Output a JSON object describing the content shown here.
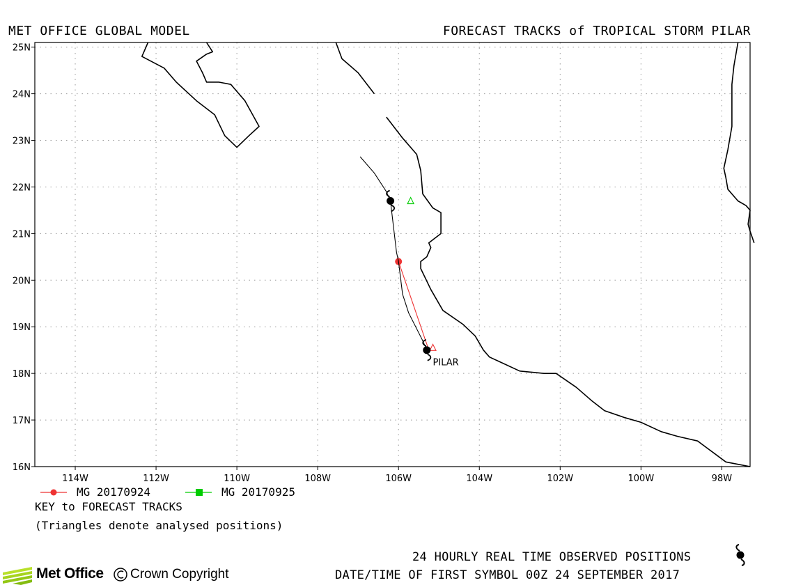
{
  "header": {
    "left_title": "MET OFFICE GLOBAL MODEL",
    "right_title": "FORECAST TRACKS of TROPICAL STORM PILAR"
  },
  "map": {
    "lon_range": [
      -115.0,
      -97.3
    ],
    "lat_range": [
      16.0,
      25.1
    ],
    "lat_ticks": [
      {
        "value": 25,
        "label": "25N"
      },
      {
        "value": 24,
        "label": "24N"
      },
      {
        "value": 23,
        "label": "23N"
      },
      {
        "value": 22,
        "label": "22N"
      },
      {
        "value": 21,
        "label": "21N"
      },
      {
        "value": 20,
        "label": "20N"
      },
      {
        "value": 19,
        "label": "19N"
      },
      {
        "value": 18,
        "label": "18N"
      },
      {
        "value": 17,
        "label": "17N"
      },
      {
        "value": 16,
        "label": "16N"
      }
    ],
    "lon_ticks": [
      {
        "value": -114,
        "label": "114W"
      },
      {
        "value": -112,
        "label": "112W"
      },
      {
        "value": -110,
        "label": "110W"
      },
      {
        "value": -108,
        "label": "108W"
      },
      {
        "value": -106,
        "label": "106W"
      },
      {
        "value": -104,
        "label": "104W"
      },
      {
        "value": -102,
        "label": "102W"
      },
      {
        "value": -100,
        "label": "100W"
      },
      {
        "value": -98,
        "label": "98W"
      }
    ],
    "grid": true,
    "storm_label": "PILAR",
    "storm_label_position": {
      "lon": -105.15,
      "lat": 18.25
    },
    "colors": {
      "coast": "#000000",
      "grid": "#999999",
      "track_red": "#ee3333",
      "track_green": "#00cc00",
      "observed": "#000000"
    },
    "coastlines": [
      [
        [
          -112.2,
          25.1
        ],
        [
          -112.35,
          24.8
        ],
        [
          -111.8,
          24.55
        ],
        [
          -111.5,
          24.25
        ],
        [
          -111.0,
          23.85
        ],
        [
          -110.55,
          23.55
        ],
        [
          -110.3,
          23.1
        ],
        [
          -110.0,
          22.85
        ],
        [
          -109.7,
          23.1
        ],
        [
          -109.45,
          23.3
        ],
        [
          -109.8,
          23.85
        ],
        [
          -110.15,
          24.2
        ],
        [
          -110.45,
          24.25
        ],
        [
          -110.75,
          24.25
        ],
        [
          -110.85,
          24.45
        ],
        [
          -111.0,
          24.7
        ],
        [
          -110.75,
          24.85
        ],
        [
          -110.6,
          24.9
        ],
        [
          -110.75,
          25.1
        ]
      ],
      [
        [
          -107.55,
          25.1
        ],
        [
          -107.4,
          24.75
        ],
        [
          -107.0,
          24.45
        ],
        [
          -106.6,
          24.0
        ]
      ],
      [
        [
          -106.3,
          23.5
        ],
        [
          -105.9,
          23.05
        ],
        [
          -105.55,
          22.7
        ],
        [
          -105.45,
          22.35
        ],
        [
          -105.4,
          21.85
        ],
        [
          -105.15,
          21.55
        ],
        [
          -104.95,
          21.45
        ],
        [
          -104.95,
          21.1
        ],
        [
          -104.95,
          21.0
        ],
        [
          -105.25,
          20.8
        ],
        [
          -105.2,
          20.7
        ],
        [
          -105.3,
          20.5
        ],
        [
          -105.45,
          20.4
        ],
        [
          -105.45,
          20.25
        ],
        [
          -105.2,
          19.8
        ],
        [
          -104.9,
          19.35
        ],
        [
          -104.4,
          19.05
        ],
        [
          -104.1,
          18.8
        ],
        [
          -103.9,
          18.5
        ],
        [
          -103.75,
          18.35
        ],
        [
          -103.5,
          18.25
        ],
        [
          -103.0,
          18.05
        ],
        [
          -102.4,
          18.0
        ],
        [
          -102.1,
          18.0
        ],
        [
          -101.6,
          17.7
        ],
        [
          -101.2,
          17.4
        ],
        [
          -100.9,
          17.2
        ],
        [
          -100.4,
          17.05
        ],
        [
          -100.0,
          16.95
        ],
        [
          -99.5,
          16.75
        ],
        [
          -99.1,
          16.65
        ],
        [
          -98.6,
          16.55
        ],
        [
          -97.9,
          16.1
        ],
        [
          -97.6,
          16.05
        ],
        [
          -97.3,
          16.0
        ]
      ],
      [
        [
          -97.6,
          25.1
        ],
        [
          -97.7,
          24.6
        ],
        [
          -97.75,
          24.2
        ],
        [
          -97.75,
          23.9
        ],
        [
          -97.75,
          23.45
        ],
        [
          -97.75,
          23.3
        ],
        [
          -97.85,
          22.8
        ],
        [
          -97.95,
          22.4
        ],
        [
          -97.9,
          22.2
        ],
        [
          -97.85,
          21.95
        ],
        [
          -97.6,
          21.7
        ],
        [
          -97.4,
          21.6
        ],
        [
          -97.3,
          21.5
        ],
        [
          -97.35,
          21.2
        ],
        [
          -97.3,
          21.05
        ],
        [
          -97.2,
          20.8
        ]
      ]
    ]
  },
  "tracks": [
    {
      "legend_label": "MG 20170924",
      "color": "#ee3333",
      "marker": "circle",
      "points": [
        {
          "lon": -105.25,
          "lat": 18.5
        },
        {
          "lon": -106.0,
          "lat": 20.4
        }
      ]
    },
    {
      "legend_label": "MG 20170925",
      "color": "#00cc00",
      "marker": "square",
      "points": []
    }
  ],
  "observed_track": [
    {
      "lon": -105.3,
      "lat": 18.5
    },
    {
      "lon": -105.4,
      "lat": 18.7
    },
    {
      "lon": -105.75,
      "lat": 19.3
    },
    {
      "lon": -105.9,
      "lat": 19.7
    },
    {
      "lon": -106.0,
      "lat": 20.4
    },
    {
      "lon": -106.05,
      "lat": 20.6
    },
    {
      "lon": -106.2,
      "lat": 21.7
    },
    {
      "lon": -106.3,
      "lat": 21.9
    },
    {
      "lon": -106.6,
      "lat": 22.3
    },
    {
      "lon": -106.95,
      "lat": 22.65
    }
  ],
  "observed_symbols": [
    {
      "lon": -105.3,
      "lat": 18.5
    },
    {
      "lon": -106.2,
      "lat": 21.7
    }
  ],
  "analysed_positions": [
    {
      "lon": -105.15,
      "lat": 18.55,
      "color": "#ee3333"
    },
    {
      "lon": -105.7,
      "lat": 21.7,
      "color": "#00cc00"
    }
  ],
  "legend": {
    "key_title": "KEY to FORECAST TRACKS",
    "note": "(Triangles denote analysed positions)"
  },
  "footer": {
    "observed_label": "24 HOURLY REAL TIME OBSERVED POSITIONS",
    "first_symbol": "DATE/TIME OF FIRST SYMBOL 00Z 24 SEPTEMBER 2017",
    "logo_text": "Met Office",
    "copyright": "Crown Copyright"
  }
}
